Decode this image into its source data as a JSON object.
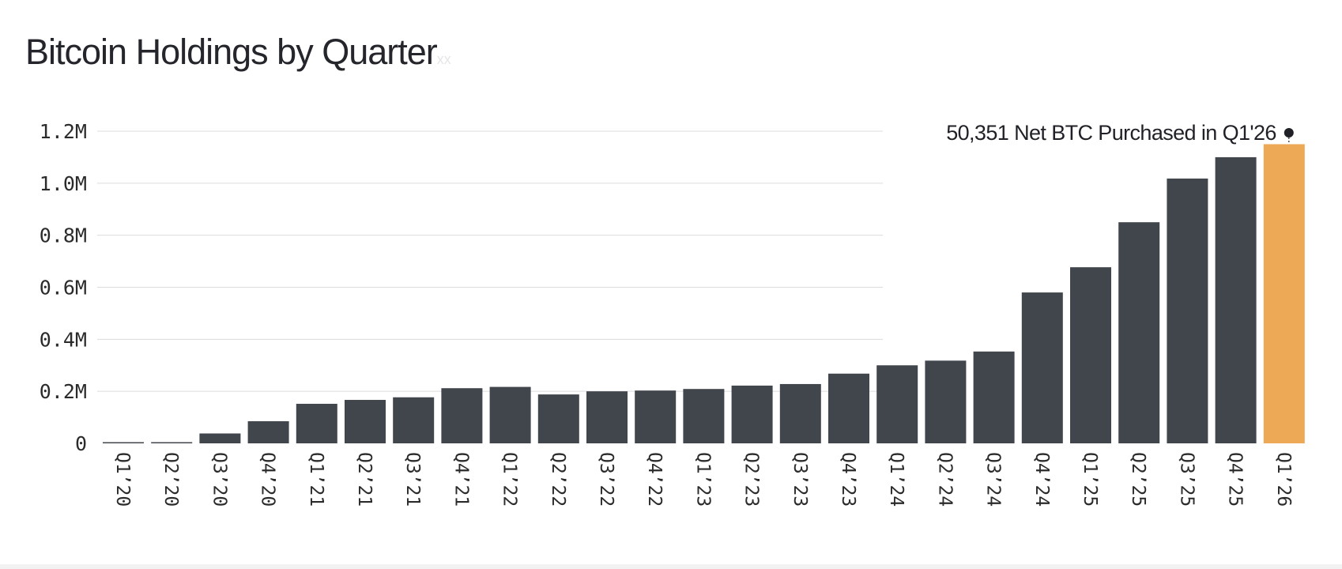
{
  "chart_data": {
    "type": "bar",
    "title": "Bitcoin Holdings by Quarter",
    "title_suffix": "xx",
    "categories": [
      "Q1’20",
      "Q2’20",
      "Q3’20",
      "Q4’20",
      "Q1’21",
      "Q2’21",
      "Q3’21",
      "Q4’21",
      "Q1’22",
      "Q2’22",
      "Q3’22",
      "Q4’22",
      "Q1’23",
      "Q2’23",
      "Q3’23",
      "Q4’23",
      "Q1’24",
      "Q2’24",
      "Q3’24",
      "Q4’24",
      "Q1’25",
      "Q2’25",
      "Q3’25",
      "Q4’25",
      "Q1’26"
    ],
    "values": [
      0,
      0,
      38000,
      85000,
      152000,
      167000,
      177000,
      212000,
      217000,
      188000,
      200000,
      203000,
      209000,
      222000,
      228000,
      268000,
      300000,
      318000,
      353000,
      580000,
      677000,
      850000,
      1018000,
      1100000,
      1150000
    ],
    "highlight_index": 24,
    "y_ticks": [
      0,
      200000,
      400000,
      600000,
      800000,
      1000000,
      1200000
    ],
    "y_tick_labels": [
      "0",
      "0.2M",
      "0.4M",
      "0.6M",
      "0.8M",
      "1.0M",
      "1.2M"
    ],
    "ylim": [
      0,
      1200000
    ],
    "xlabel": "",
    "ylabel": "",
    "grid": true,
    "annotation": {
      "text": "50,351 Net BTC Purchased in Q1'26",
      "target_index": 24
    },
    "colors": {
      "bar": "#41454c",
      "highlight": "#eda955",
      "grid": "#dcdcdc",
      "text": "#2b2b2b"
    }
  }
}
